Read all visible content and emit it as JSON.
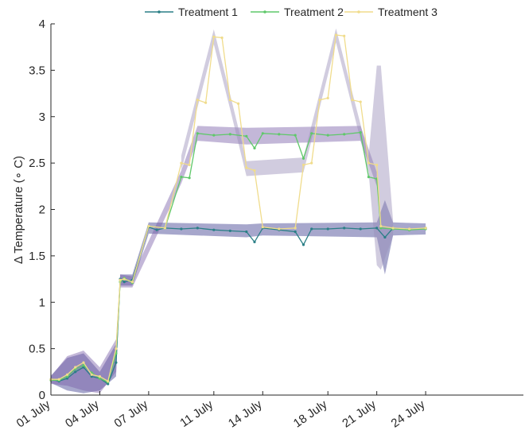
{
  "chart_data": {
    "type": "line",
    "title": "",
    "xlabel": "",
    "ylabel": "Δ Temperature (∘ C)",
    "ylim": [
      0,
      4
    ],
    "y_ticks": [
      0,
      0.5,
      1,
      1.5,
      2,
      2.5,
      3,
      3.5,
      4
    ],
    "y_tick_labels": [
      "0",
      "0.5",
      "1",
      "1.5",
      "2",
      "2.5",
      "3",
      "3.5",
      "4"
    ],
    "xlim": [
      "2023-07-01",
      "2023-07-30"
    ],
    "x_tick_dates": [
      "2023-07-01",
      "2023-07-04",
      "2023-07-07",
      "2023-07-11",
      "2023-07-14",
      "2023-07-18",
      "2023-07-21",
      "2023-07-24"
    ],
    "x_tick_labels": [
      "01 July",
      "04 July",
      "07 July",
      "11 July",
      "14 July",
      "18 July",
      "21 July",
      "24 July"
    ],
    "grid": false,
    "legend_position": "top",
    "series": [
      {
        "name": "Treatment 1",
        "color": "#2a7f86",
        "band_color": "#3b3b8f",
        "points": [
          [
            "2023-07-01",
            0.17
          ],
          [
            "2023-07-01T12:00",
            0.15
          ],
          [
            "2023-07-02",
            0.18
          ],
          [
            "2023-07-02T12:00",
            0.25
          ],
          [
            "2023-07-03",
            0.3
          ],
          [
            "2023-07-03T12:00",
            0.2
          ],
          [
            "2023-07-04",
            0.18
          ],
          [
            "2023-07-04T12:00",
            0.12
          ],
          [
            "2023-07-05",
            0.35
          ],
          [
            "2023-07-05T06:00",
            1.25
          ],
          [
            "2023-07-05T12:00",
            1.22
          ],
          [
            "2023-07-06",
            1.24
          ],
          [
            "2023-07-07",
            1.81
          ],
          [
            "2023-07-07T12:00",
            1.78
          ],
          [
            "2023-07-08",
            1.8
          ],
          [
            "2023-07-09",
            1.79
          ],
          [
            "2023-07-10",
            1.8
          ],
          [
            "2023-07-11",
            1.78
          ],
          [
            "2023-07-12",
            1.77
          ],
          [
            "2023-07-13",
            1.76
          ],
          [
            "2023-07-13T12:00",
            1.65
          ],
          [
            "2023-07-14",
            1.8
          ],
          [
            "2023-07-15",
            1.78
          ],
          [
            "2023-07-16",
            1.76
          ],
          [
            "2023-07-16T12:00",
            1.62
          ],
          [
            "2023-07-17",
            1.79
          ],
          [
            "2023-07-18",
            1.79
          ],
          [
            "2023-07-19",
            1.8
          ],
          [
            "2023-07-20",
            1.79
          ],
          [
            "2023-07-21",
            1.8
          ],
          [
            "2023-07-21T12:00",
            1.7
          ],
          [
            "2023-07-22",
            1.8
          ],
          [
            "2023-07-23",
            1.78
          ],
          [
            "2023-07-24",
            1.8
          ]
        ],
        "band": [
          [
            "2023-07-01",
            0.13,
            0.21
          ],
          [
            "2023-07-02",
            0.05,
            0.4
          ],
          [
            "2023-07-03",
            0.02,
            0.45
          ],
          [
            "2023-07-04",
            0.05,
            0.25
          ],
          [
            "2023-07-05",
            0.2,
            0.55
          ],
          [
            "2023-07-05T06:00",
            1.18,
            1.3
          ],
          [
            "2023-07-06",
            1.18,
            1.3
          ],
          [
            "2023-07-07",
            1.74,
            1.86
          ],
          [
            "2023-07-13",
            1.7,
            1.84
          ],
          [
            "2023-07-14",
            1.72,
            1.85
          ],
          [
            "2023-07-21",
            1.7,
            1.86
          ],
          [
            "2023-07-21T12:00",
            1.3,
            2.1
          ],
          [
            "2023-07-22",
            1.72,
            1.86
          ],
          [
            "2023-07-24",
            1.73,
            1.85
          ]
        ]
      },
      {
        "name": "Treatment 2",
        "color": "#5fc86a",
        "band_color": "#7a5fa8",
        "points": [
          [
            "2023-07-01",
            0.16
          ],
          [
            "2023-07-01T12:00",
            0.16
          ],
          [
            "2023-07-02",
            0.2
          ],
          [
            "2023-07-02T12:00",
            0.28
          ],
          [
            "2023-07-03",
            0.32
          ],
          [
            "2023-07-03T12:00",
            0.24
          ],
          [
            "2023-07-04",
            0.18
          ],
          [
            "2023-07-04T12:00",
            0.14
          ],
          [
            "2023-07-05",
            0.45
          ],
          [
            "2023-07-05T06:00",
            1.22
          ],
          [
            "2023-07-05T12:00",
            1.26
          ],
          [
            "2023-07-06",
            1.21
          ],
          [
            "2023-07-07",
            1.82
          ],
          [
            "2023-07-08",
            1.8
          ],
          [
            "2023-07-09",
            2.35
          ],
          [
            "2023-07-09T12:00",
            2.34
          ],
          [
            "2023-07-10",
            2.82
          ],
          [
            "2023-07-11",
            2.8
          ],
          [
            "2023-07-12",
            2.81
          ],
          [
            "2023-07-13",
            2.79
          ],
          [
            "2023-07-13T12:00",
            2.66
          ],
          [
            "2023-07-14",
            2.82
          ],
          [
            "2023-07-15",
            2.81
          ],
          [
            "2023-07-16",
            2.8
          ],
          [
            "2023-07-16T12:00",
            2.55
          ],
          [
            "2023-07-17",
            2.82
          ],
          [
            "2023-07-18",
            2.8
          ],
          [
            "2023-07-19",
            2.81
          ],
          [
            "2023-07-20",
            2.83
          ],
          [
            "2023-07-20T12:00",
            2.35
          ],
          [
            "2023-07-21",
            2.33
          ],
          [
            "2023-07-21T06:00",
            1.8
          ],
          [
            "2023-07-22",
            1.79
          ],
          [
            "2023-07-23",
            1.78
          ],
          [
            "2023-07-24",
            1.79
          ]
        ],
        "band": [
          [
            "2023-07-01",
            0.12,
            0.2
          ],
          [
            "2023-07-02",
            0.1,
            0.42
          ],
          [
            "2023-07-03",
            0.05,
            0.48
          ],
          [
            "2023-07-04",
            0.02,
            0.3
          ],
          [
            "2023-07-05",
            0.25,
            0.6
          ],
          [
            "2023-07-05T06:00",
            1.16,
            1.3
          ],
          [
            "2023-07-06",
            1.16,
            1.28
          ],
          [
            "2023-07-09",
            2.28,
            2.42
          ],
          [
            "2023-07-10",
            2.74,
            2.9
          ],
          [
            "2023-07-13",
            2.7,
            2.88
          ],
          [
            "2023-07-20",
            2.74,
            2.9
          ],
          [
            "2023-07-21",
            2.25,
            2.4
          ]
        ]
      },
      {
        "name": "Treatment 3",
        "color": "#f0dc8c",
        "band_color": "#9a8fb8",
        "points": [
          [
            "2023-07-01",
            0.17
          ],
          [
            "2023-07-01T12:00",
            0.17
          ],
          [
            "2023-07-02",
            0.22
          ],
          [
            "2023-07-02T12:00",
            0.3
          ],
          [
            "2023-07-03",
            0.35
          ],
          [
            "2023-07-03T12:00",
            0.22
          ],
          [
            "2023-07-04",
            0.2
          ],
          [
            "2023-07-04T12:00",
            0.15
          ],
          [
            "2023-07-05",
            0.5
          ],
          [
            "2023-07-05T06:00",
            1.24
          ],
          [
            "2023-07-05T12:00",
            1.25
          ],
          [
            "2023-07-06",
            1.22
          ],
          [
            "2023-07-07",
            1.82
          ],
          [
            "2023-07-08",
            1.8
          ],
          [
            "2023-07-09",
            2.5
          ],
          [
            "2023-07-09T12:00",
            2.48
          ],
          [
            "2023-07-10",
            3.18
          ],
          [
            "2023-07-10T12:00",
            3.15
          ],
          [
            "2023-07-11",
            3.86
          ],
          [
            "2023-07-11T12:00",
            3.85
          ],
          [
            "2023-07-12",
            3.18
          ],
          [
            "2023-07-12T12:00",
            3.14
          ],
          [
            "2023-07-13",
            2.45
          ],
          [
            "2023-07-13T12:00",
            2.42
          ],
          [
            "2023-07-14",
            1.81
          ],
          [
            "2023-07-15",
            1.79
          ],
          [
            "2023-07-16",
            1.8
          ],
          [
            "2023-07-16T12:00",
            2.48
          ],
          [
            "2023-07-17",
            2.5
          ],
          [
            "2023-07-17T12:00",
            3.18
          ],
          [
            "2023-07-18",
            3.2
          ],
          [
            "2023-07-18T12:00",
            3.88
          ],
          [
            "2023-07-19",
            3.87
          ],
          [
            "2023-07-19T12:00",
            3.18
          ],
          [
            "2023-07-20",
            3.16
          ],
          [
            "2023-07-20T12:00",
            2.5
          ],
          [
            "2023-07-21",
            2.48
          ],
          [
            "2023-07-21T06:00",
            1.82
          ],
          [
            "2023-07-22",
            1.8
          ],
          [
            "2023-07-23",
            1.79
          ],
          [
            "2023-07-24",
            1.8
          ]
        ],
        "band": [
          [
            "2023-07-09",
            2.42,
            2.58
          ],
          [
            "2023-07-10",
            3.1,
            3.26
          ],
          [
            "2023-07-11",
            3.78,
            3.94
          ],
          [
            "2023-07-12",
            3.08,
            3.24
          ],
          [
            "2023-07-13",
            2.36,
            2.52
          ],
          [
            "2023-07-16T12:00",
            2.4,
            2.56
          ],
          [
            "2023-07-17T12:00",
            3.1,
            3.26
          ],
          [
            "2023-07-18T12:00",
            3.8,
            3.95
          ],
          [
            "2023-07-19T12:00",
            3.1,
            3.26
          ],
          [
            "2023-07-20T12:00",
            2.4,
            2.58
          ],
          [
            "2023-07-21",
            1.4,
            3.55
          ],
          [
            "2023-07-21T06:00",
            1.35,
            3.55
          ],
          [
            "2023-07-22",
            1.72,
            1.88
          ]
        ]
      }
    ]
  }
}
